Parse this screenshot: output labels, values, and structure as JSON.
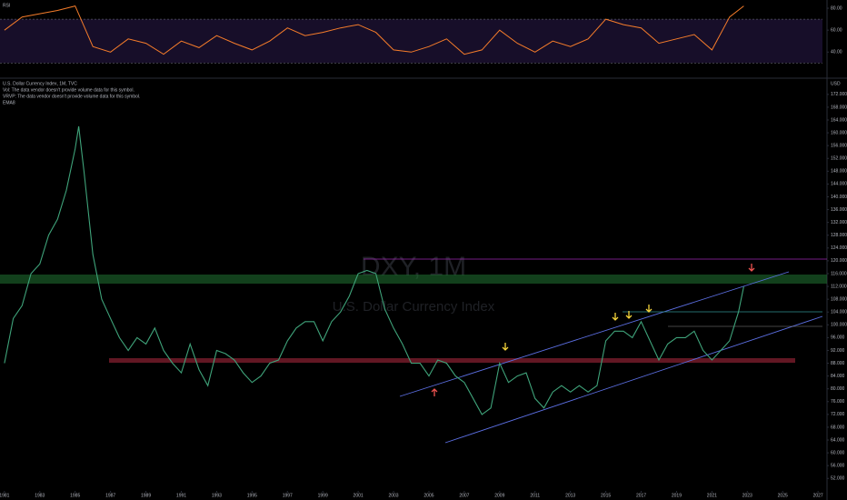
{
  "chart_data": [
    {
      "type": "line",
      "title": "RSI",
      "x": [
        1981,
        1982,
        1983,
        1984,
        1985,
        1986,
        1987,
        1988,
        1989,
        1990,
        1991,
        1992,
        1993,
        1994,
        1995,
        1996,
        1997,
        1998,
        1999,
        2000,
        2001,
        2002,
        2003,
        2004,
        2005,
        2006,
        2007,
        2008,
        2009,
        2010,
        2011,
        2012,
        2013,
        2014,
        2015,
        2016,
        2017,
        2018,
        2019,
        2020,
        2021,
        2022,
        2022.8
      ],
      "series": [
        {
          "name": "RSI",
          "color": "#f57c2a",
          "values": [
            60,
            72,
            75,
            78,
            82,
            45,
            40,
            52,
            48,
            38,
            50,
            44,
            55,
            48,
            42,
            50,
            62,
            55,
            58,
            62,
            65,
            58,
            42,
            40,
            45,
            52,
            38,
            42,
            60,
            48,
            40,
            50,
            45,
            52,
            70,
            65,
            62,
            48,
            52,
            56,
            42,
            72,
            82
          ]
        }
      ],
      "band": [
        30,
        70
      ],
      "xlim": [
        1980.75,
        2027.25
      ],
      "ylim": [
        17,
        87.5
      ],
      "yticks": [
        {
          "value": 80,
          "label": "80.00"
        },
        {
          "value": 60,
          "label": "60.00"
        },
        {
          "value": 40,
          "label": "40.00"
        }
      ]
    },
    {
      "type": "line",
      "title": "U.S. Dollar Currency Index, 1M, TVC",
      "notes": [
        "Vol: The data vendor doesn't provide volume data for this symbol.",
        "VRVP: The data vendor doesn't provide volume data for this symbol.",
        "EMA8"
      ],
      "watermark": "DXY, 1M",
      "watermark_subtitle": "U.S. Dollar Currency Index",
      "currency": "USD",
      "x": [
        1981,
        1981.5,
        1982,
        1982.5,
        1983,
        1983.5,
        1984,
        1984.5,
        1985,
        1985.2,
        1985.5,
        1986,
        1986.5,
        1987,
        1987.5,
        1988,
        1988.5,
        1989,
        1989.5,
        1990,
        1990.5,
        1991,
        1991.5,
        1992,
        1992.5,
        1993,
        1993.5,
        1994,
        1994.5,
        1995,
        1995.5,
        1996,
        1996.5,
        1997,
        1997.5,
        1998,
        1998.5,
        1999,
        1999.5,
        2000,
        2000.5,
        2001,
        2001.5,
        2002,
        2002.5,
        2003,
        2003.5,
        2004,
        2004.5,
        2005,
        2005.5,
        2006,
        2006.5,
        2007,
        2007.5,
        2008,
        2008.5,
        2009,
        2009.5,
        2010,
        2010.5,
        2011,
        2011.5,
        2012,
        2012.5,
        2013,
        2013.5,
        2014,
        2014.5,
        2015,
        2015.5,
        2016,
        2016.5,
        2017,
        2017.5,
        2018,
        2018.5,
        2019,
        2019.5,
        2020,
        2020.5,
        2021,
        2021.5,
        2022,
        2022.5,
        2022.8
      ],
      "series": [
        {
          "name": "DXY",
          "color": "#3fa37a",
          "values": [
            88,
            102,
            106,
            116,
            119,
            128,
            133,
            142,
            155,
            162,
            148,
            122,
            108,
            102,
            96,
            92,
            96,
            94,
            99,
            92,
            88,
            85,
            94,
            86,
            81,
            92,
            91,
            89,
            85,
            82,
            84,
            88,
            89,
            95,
            99,
            101,
            101,
            95,
            101,
            104,
            109,
            116,
            117,
            116,
            105,
            99,
            94,
            88,
            88,
            84,
            89,
            88,
            84,
            82,
            77,
            72,
            74,
            88,
            82,
            84,
            85,
            77,
            74,
            79,
            81,
            79,
            81,
            79,
            81,
            95,
            98,
            98,
            96,
            101,
            95,
            89,
            94,
            96,
            96,
            98,
            92,
            89,
            92,
            95,
            104,
            112
          ]
        }
      ],
      "xlim": [
        1980.75,
        2027.25
      ],
      "ylim": [
        48.1,
        176.5
      ],
      "xticks": [
        1981,
        1983,
        1985,
        1987,
        1989,
        1991,
        1993,
        1995,
        1997,
        1999,
        2001,
        2003,
        2005,
        2007,
        2009,
        2011,
        2013,
        2015,
        2017,
        2019,
        2021,
        2023,
        2025,
        2027
      ],
      "yticks": [
        {
          "value": 172,
          "label": "172.000"
        },
        {
          "value": 168,
          "label": "168.000"
        },
        {
          "value": 164,
          "label": "164.000"
        },
        {
          "value": 160,
          "label": "160.000"
        },
        {
          "value": 156,
          "label": "156.000"
        },
        {
          "value": 152,
          "label": "152.000"
        },
        {
          "value": 148,
          "label": "148.000"
        },
        {
          "value": 144,
          "label": "144.000"
        },
        {
          "value": 140,
          "label": "140.000"
        },
        {
          "value": 136,
          "label": "136.000"
        },
        {
          "value": 132,
          "label": "132.000"
        },
        {
          "value": 128,
          "label": "128.000"
        },
        {
          "value": 124,
          "label": "124.000"
        },
        {
          "value": 120,
          "label": "120.000"
        },
        {
          "value": 116,
          "label": "116.000"
        },
        {
          "value": 112,
          "label": "112.000"
        },
        {
          "value": 108,
          "label": "108.000"
        },
        {
          "value": 104,
          "label": "104.000"
        },
        {
          "value": 100,
          "label": "100.000"
        },
        {
          "value": 96,
          "label": "96.000"
        },
        {
          "value": 92,
          "label": "92.000"
        },
        {
          "value": 88,
          "label": "88.000"
        },
        {
          "value": 84,
          "label": "84.000"
        },
        {
          "value": 80,
          "label": "80.000"
        },
        {
          "value": 76,
          "label": "76.000"
        },
        {
          "value": 72,
          "label": "72.000"
        },
        {
          "value": 68,
          "label": "68.000"
        },
        {
          "value": 64,
          "label": "64.000"
        },
        {
          "value": 60,
          "label": "60.000"
        },
        {
          "value": 56,
          "label": "56.000"
        },
        {
          "value": 52,
          "label": "52.000"
        }
      ],
      "grid": false
    }
  ]
}
